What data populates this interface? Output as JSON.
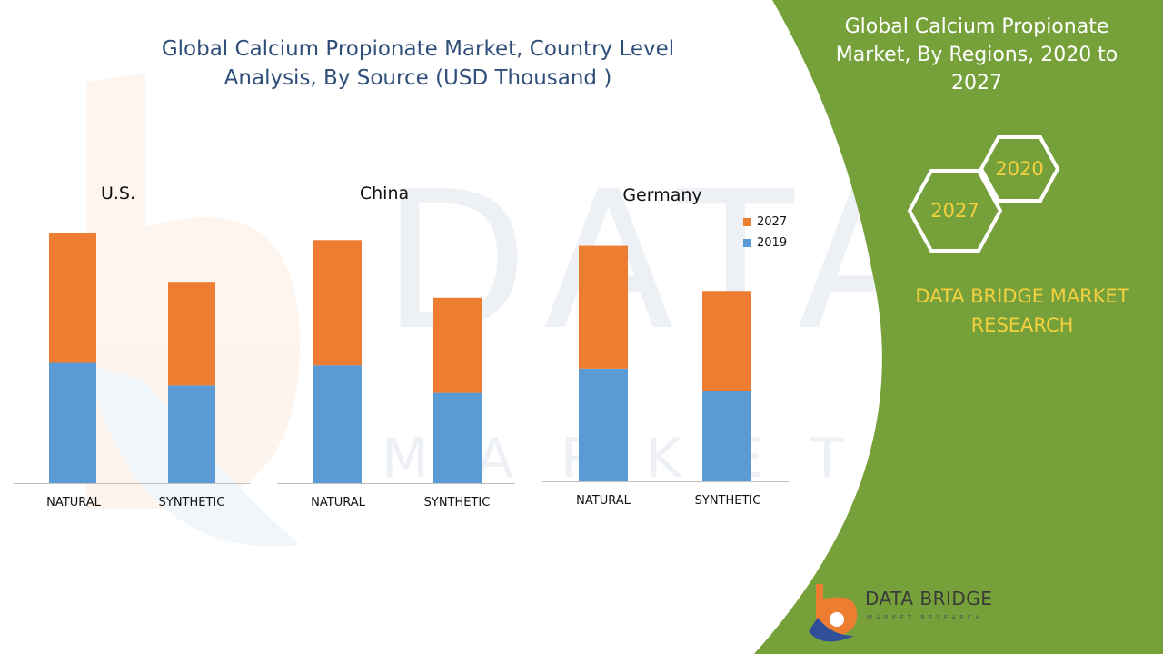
{
  "main_title": "Global Calcium Propionate Market, Country Level Analysis, By Source (USD Thousand )",
  "right_panel": {
    "title": "Global Calcium Propionate Market, By Regions, 2020 to 2027",
    "hex_labels": [
      "2020",
      "2027"
    ],
    "brand": "DATA BRIDGE MARKET RESEARCH",
    "logo_text": "DATA BRIDGE",
    "logo_subtext": "MARKET RESEARCH"
  },
  "colors": {
    "series_2019": "#5b9bd5",
    "series_2027": "#ed7d31",
    "green_panel": "#76a13a",
    "accent_yellow": "#f4d03f",
    "title_blue": "#2f4f7a"
  },
  "legend": [
    {
      "name": "2027",
      "color": "#ed7d31"
    },
    {
      "name": "2019",
      "color": "#5b9bd5"
    }
  ],
  "chart_data": [
    {
      "type": "bar",
      "stacked": true,
      "title": "U.S.",
      "categories": [
        "NATURAL",
        "SYNTHETIC"
      ],
      "series": [
        {
          "name": "2019",
          "values": [
            48,
            39
          ]
        },
        {
          "name": "2027",
          "values": [
            52,
            41
          ]
        }
      ]
    },
    {
      "type": "bar",
      "stacked": true,
      "title": "China",
      "categories": [
        "NATURAL",
        "SYNTHETIC"
      ],
      "series": [
        {
          "name": "2019",
          "values": [
            47,
            36
          ]
        },
        {
          "name": "2027",
          "values": [
            50,
            38
          ]
        }
      ]
    },
    {
      "type": "bar",
      "stacked": true,
      "title": "Germany",
      "categories": [
        "NATURAL",
        "SYNTHETIC"
      ],
      "series": [
        {
          "name": "2019",
          "values": [
            45,
            36
          ]
        },
        {
          "name": "2027",
          "values": [
            49,
            40
          ]
        }
      ]
    }
  ]
}
